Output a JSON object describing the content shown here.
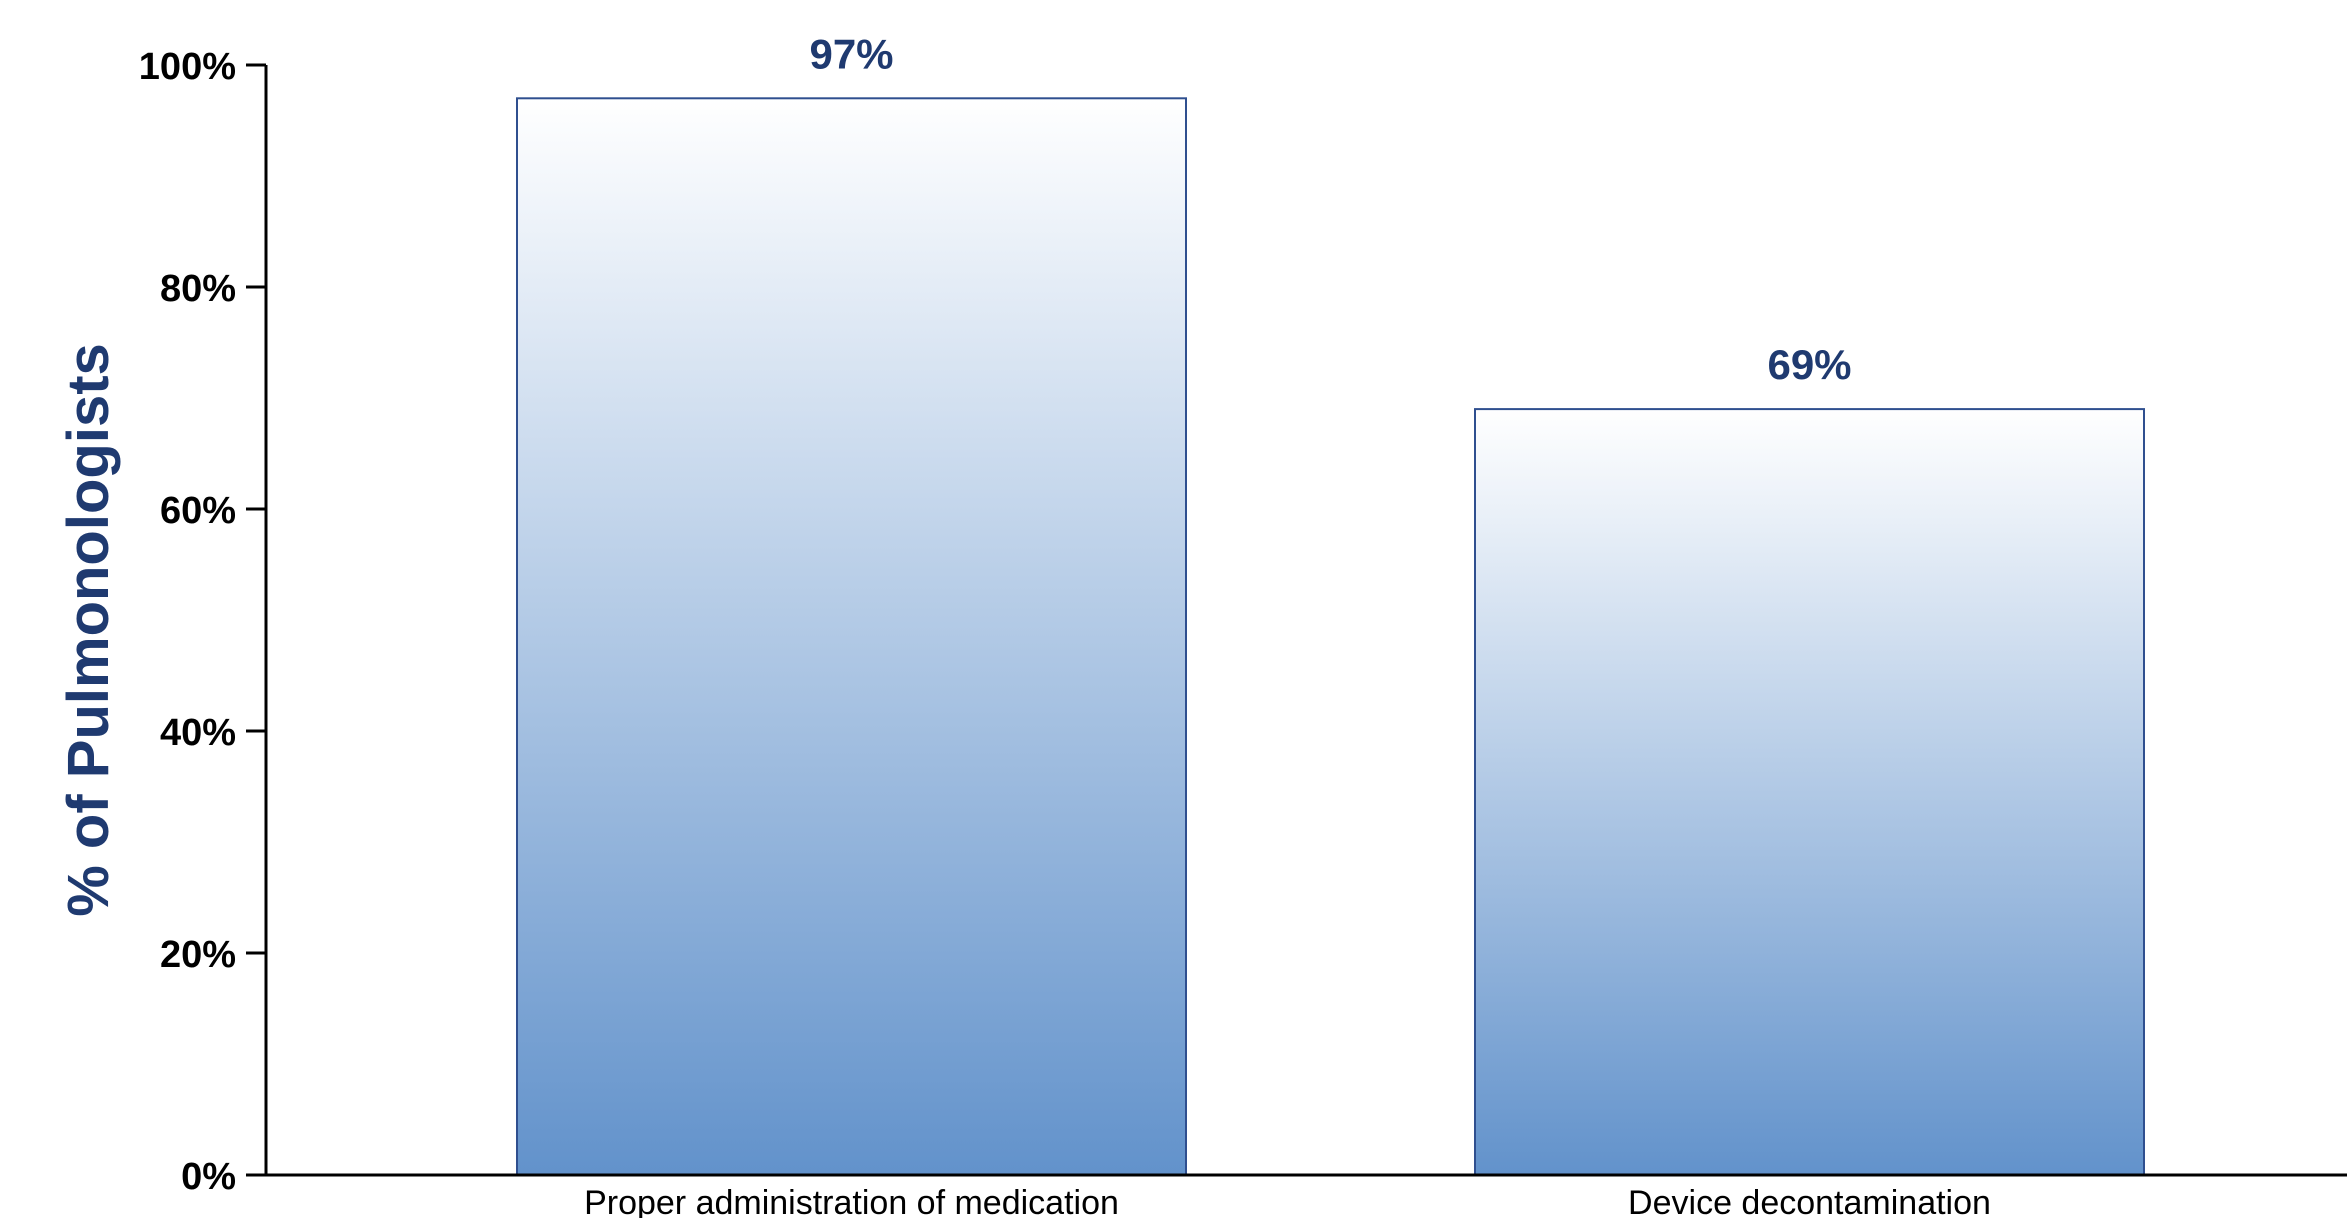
{
  "chart_data": {
    "type": "bar",
    "categories": [
      "Proper administration of medication",
      "Device decontamination"
    ],
    "values": [
      97,
      69
    ],
    "data_labels": [
      "97%",
      "69%"
    ],
    "title": "",
    "xlabel": "",
    "ylabel": "% of Pulmonologists",
    "ylim": [
      0,
      100
    ],
    "yticks": [
      0,
      20,
      40,
      60,
      80,
      100
    ],
    "ytick_labels": [
      "0%",
      "20%",
      "40%",
      "60%",
      "80%",
      "100%"
    ],
    "grid": false,
    "legend": "none",
    "colors": {
      "bar_top": "#ffffff",
      "bar_bottom": "#6292cb",
      "bar_border": "#2f4f8f",
      "label_color": "#1f3a70",
      "axis_color": "#000000"
    }
  }
}
